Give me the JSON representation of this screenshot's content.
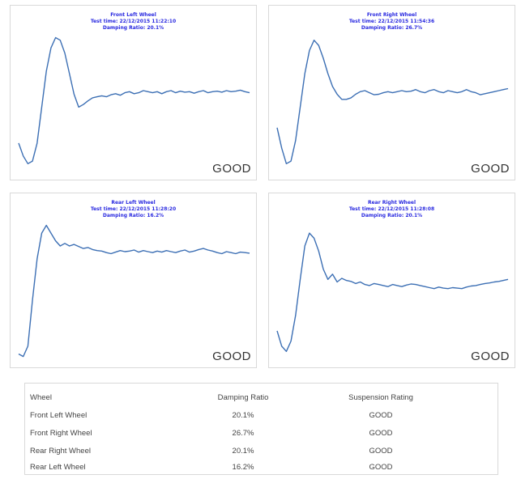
{
  "chart_data": [
    {
      "type": "line",
      "name_key": "front-left",
      "title": "Front Left Wheel",
      "subtitle_1": "Test time: 22/12/2015 11:22:10",
      "subtitle_2": "Damping Ratio: 20.1%",
      "rating": "GOOD",
      "color": "#3c6fb4",
      "xlim": [
        0,
        100
      ],
      "ylim": [
        -1.2,
        1.6
      ],
      "x": [
        0,
        2,
        4,
        6,
        8,
        10,
        12,
        14,
        16,
        18,
        20,
        22,
        24,
        26,
        28,
        30,
        32,
        34,
        36,
        38,
        40,
        42,
        44,
        46,
        48,
        50,
        52,
        54,
        56,
        58,
        60,
        62,
        64,
        66,
        68,
        70,
        72,
        74,
        76,
        78,
        80,
        82,
        84,
        86,
        88,
        90,
        92,
        94,
        96,
        98,
        100
      ],
      "y": [
        -0.6,
        -0.85,
        -1.0,
        -0.95,
        -0.6,
        0.1,
        0.8,
        1.25,
        1.45,
        1.4,
        1.15,
        0.75,
        0.35,
        0.1,
        0.15,
        0.22,
        0.28,
        0.3,
        0.32,
        0.3,
        0.34,
        0.36,
        0.33,
        0.38,
        0.4,
        0.36,
        0.38,
        0.42,
        0.4,
        0.38,
        0.4,
        0.36,
        0.4,
        0.42,
        0.38,
        0.41,
        0.39,
        0.4,
        0.37,
        0.4,
        0.42,
        0.38,
        0.4,
        0.41,
        0.39,
        0.42,
        0.4,
        0.41,
        0.43,
        0.4,
        0.38
      ]
    },
    {
      "type": "line",
      "name_key": "front-right",
      "title": "Front Right Wheel",
      "subtitle_1": "Test time: 22/12/2015 11:54:36",
      "subtitle_2": "Damping Ratio: 26.7%",
      "rating": "GOOD",
      "color": "#3c6fb4",
      "xlim": [
        0,
        100
      ],
      "ylim": [
        -1.2,
        1.6
      ],
      "x": [
        0,
        2,
        4,
        6,
        8,
        10,
        12,
        14,
        16,
        18,
        20,
        22,
        24,
        26,
        28,
        30,
        32,
        34,
        36,
        38,
        40,
        42,
        44,
        46,
        48,
        50,
        52,
        54,
        56,
        58,
        60,
        62,
        64,
        66,
        68,
        70,
        72,
        74,
        76,
        78,
        80,
        82,
        84,
        86,
        88,
        90,
        92,
        94,
        96,
        98,
        100
      ],
      "y": [
        -0.3,
        -0.7,
        -1.0,
        -0.95,
        -0.55,
        0.1,
        0.75,
        1.2,
        1.4,
        1.3,
        1.05,
        0.75,
        0.5,
        0.35,
        0.25,
        0.25,
        0.28,
        0.35,
        0.4,
        0.42,
        0.38,
        0.34,
        0.35,
        0.38,
        0.4,
        0.38,
        0.4,
        0.42,
        0.4,
        0.41,
        0.44,
        0.4,
        0.38,
        0.42,
        0.44,
        0.4,
        0.38,
        0.42,
        0.4,
        0.38,
        0.4,
        0.44,
        0.4,
        0.38,
        0.34,
        0.36,
        0.38,
        0.4,
        0.42,
        0.44,
        0.46
      ]
    },
    {
      "type": "line",
      "name_key": "rear-left",
      "title": "Rear Left Wheel",
      "subtitle_1": "Test time: 22/12/2015 11:28:20",
      "subtitle_2": "Damping Ratio: 16.2%",
      "rating": "GOOD",
      "color": "#3c6fb4",
      "xlim": [
        0,
        100
      ],
      "ylim": [
        -1.2,
        1.6
      ],
      "x": [
        0,
        2,
        4,
        6,
        8,
        10,
        12,
        14,
        16,
        18,
        20,
        22,
        24,
        26,
        28,
        30,
        32,
        34,
        36,
        38,
        40,
        42,
        44,
        46,
        48,
        50,
        52,
        54,
        56,
        58,
        60,
        62,
        64,
        66,
        68,
        70,
        72,
        74,
        76,
        78,
        80,
        82,
        84,
        86,
        88,
        90,
        92,
        94,
        96,
        98,
        100
      ],
      "y": [
        -1.05,
        -1.1,
        -0.9,
        0.0,
        0.8,
        1.3,
        1.45,
        1.3,
        1.15,
        1.05,
        1.1,
        1.05,
        1.08,
        1.04,
        1.0,
        1.02,
        0.98,
        0.96,
        0.95,
        0.92,
        0.9,
        0.93,
        0.96,
        0.94,
        0.95,
        0.97,
        0.93,
        0.96,
        0.94,
        0.92,
        0.95,
        0.93,
        0.96,
        0.94,
        0.92,
        0.95,
        0.97,
        0.93,
        0.95,
        0.98,
        1.0,
        0.97,
        0.95,
        0.92,
        0.9,
        0.94,
        0.92,
        0.9,
        0.93,
        0.92,
        0.91
      ]
    },
    {
      "type": "line",
      "name_key": "rear-right",
      "title": "Rear Right Wheel",
      "subtitle_1": "Test time: 22/12/2015 11:28:08",
      "subtitle_2": "Damping Ratio: 20.1%",
      "rating": "GOOD",
      "color": "#3c6fb4",
      "xlim": [
        0,
        100
      ],
      "ylim": [
        -1.2,
        1.6
      ],
      "x": [
        0,
        2,
        4,
        6,
        8,
        10,
        12,
        14,
        16,
        18,
        20,
        22,
        24,
        26,
        28,
        30,
        32,
        34,
        36,
        38,
        40,
        42,
        44,
        46,
        48,
        50,
        52,
        54,
        56,
        58,
        60,
        62,
        64,
        66,
        68,
        70,
        72,
        74,
        76,
        78,
        80,
        82,
        84,
        86,
        88,
        90,
        92,
        94,
        96,
        98,
        100
      ],
      "y": [
        -0.6,
        -0.9,
        -1.0,
        -0.8,
        -0.3,
        0.4,
        1.05,
        1.3,
        1.2,
        0.95,
        0.6,
        0.4,
        0.5,
        0.35,
        0.42,
        0.38,
        0.36,
        0.32,
        0.35,
        0.3,
        0.28,
        0.32,
        0.3,
        0.28,
        0.26,
        0.3,
        0.28,
        0.26,
        0.29,
        0.31,
        0.3,
        0.28,
        0.26,
        0.24,
        0.22,
        0.25,
        0.23,
        0.22,
        0.24,
        0.23,
        0.22,
        0.25,
        0.27,
        0.28,
        0.3,
        0.32,
        0.33,
        0.35,
        0.36,
        0.38,
        0.4
      ]
    }
  ],
  "table": {
    "headers": [
      "Wheel",
      "Damping Ratio",
      "Suspension Rating"
    ],
    "rows": [
      [
        "Front Left Wheel",
        "20.1%",
        "GOOD"
      ],
      [
        "Front Right Wheel",
        "26.7%",
        "GOOD"
      ],
      [
        "Rear Right Wheel",
        "20.1%",
        "GOOD"
      ],
      [
        "Rear Left Wheel",
        "16.2%",
        "GOOD"
      ]
    ]
  }
}
